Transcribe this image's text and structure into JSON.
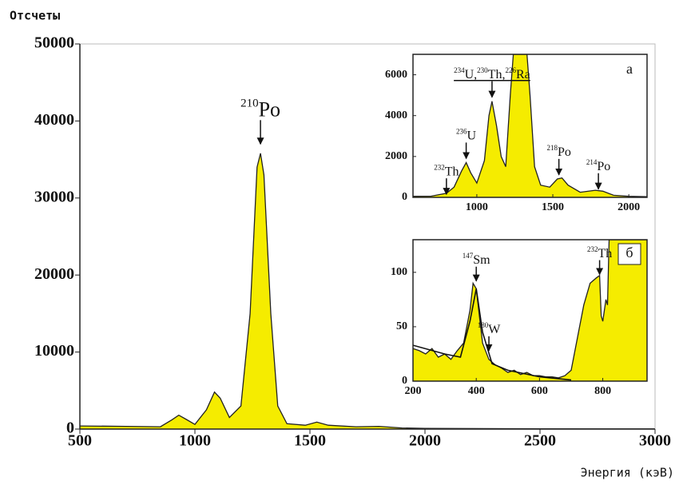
{
  "chart_data": [
    {
      "type": "area",
      "y_label": "Отсчеты",
      "x_label": "Энергия (кэВ)",
      "xlim": [
        500,
        3000
      ],
      "ylim": [
        0,
        50000
      ],
      "xticks": [
        500,
        1000,
        1500,
        2000,
        2500,
        3000
      ],
      "yticks": [
        0,
        10000,
        20000,
        30000,
        40000,
        50000
      ],
      "grid": false,
      "series": [
        {
          "color": "#f5ec00",
          "x": [
            500,
            700,
            850,
            900,
            930,
            960,
            1000,
            1050,
            1085,
            1110,
            1150,
            1200,
            1240,
            1270,
            1285,
            1300,
            1330,
            1360,
            1400,
            1480,
            1530,
            1580,
            1700,
            1800,
            1900,
            2000,
            2500,
            3000
          ],
          "values": [
            400,
            350,
            300,
            1200,
            1800,
            1300,
            600,
            2500,
            4800,
            4000,
            1500,
            3000,
            15000,
            34000,
            35800,
            33000,
            15000,
            3000,
            700,
            500,
            900,
            500,
            300,
            350,
            150,
            80,
            40,
            20
          ]
        }
      ],
      "annotations": [
        {
          "label": [
            {
              "sup": "210",
              "text": "Po"
            }
          ],
          "x": 1285,
          "y": 37000
        }
      ]
    },
    {
      "type": "area",
      "panel_label": "а",
      "xlim": [
        580,
        2120
      ],
      "ylim": [
        0,
        7000
      ],
      "xticks": [
        1000,
        1500,
        2000
      ],
      "yticks": [
        0,
        2000,
        4000,
        6000
      ],
      "series": [
        {
          "color": "#f5ec00",
          "x": [
            580,
            700,
            800,
            850,
            900,
            930,
            960,
            1000,
            1050,
            1080,
            1100,
            1130,
            1160,
            1190,
            1220,
            1240,
            1330,
            1350,
            1380,
            1420,
            1480,
            1530,
            1560,
            1600,
            1680,
            1780,
            1830,
            1900,
            2000,
            2120
          ],
          "values": [
            50,
            60,
            200,
            500,
            1300,
            1700,
            1200,
            700,
            1800,
            4000,
            4700,
            3500,
            2000,
            1500,
            5000,
            7000,
            7000,
            5000,
            1500,
            600,
            500,
            900,
            950,
            600,
            250,
            350,
            300,
            100,
            50,
            30
          ]
        }
      ],
      "annotations": [
        {
          "label": [
            {
              "sup": "234",
              "text": "U,"
            },
            {
              "sup": "230",
              "text": "Th,"
            },
            {
              "sup": "226",
              "text": "Ra"
            }
          ],
          "x": 1100,
          "y": 4900
        },
        {
          "label": [
            {
              "sup": "236",
              "text": "U"
            }
          ],
          "x": 930,
          "y": 1900
        },
        {
          "label": [
            {
              "sup": "232",
              "text": "Th"
            }
          ],
          "x": 800,
          "y": 150
        },
        {
          "label": [
            {
              "sup": "218",
              "text": "Po"
            }
          ],
          "x": 1540,
          "y": 1100
        },
        {
          "label": [
            {
              "sup": "214",
              "text": "Po"
            }
          ],
          "x": 1800,
          "y": 400
        }
      ]
    },
    {
      "type": "area",
      "panel_label": "б",
      "xlim": [
        200,
        940
      ],
      "ylim": [
        0,
        130
      ],
      "xticks": [
        200,
        400,
        600,
        800
      ],
      "yticks": [
        0,
        50,
        100
      ],
      "series": [
        {
          "color": "#f5ec00",
          "x": [
            200,
            220,
            240,
            260,
            280,
            300,
            320,
            340,
            360,
            380,
            390,
            400,
            410,
            420,
            440,
            460,
            480,
            500,
            520,
            540,
            560,
            580,
            600,
            620,
            640,
            660,
            680,
            700,
            720,
            740,
            760,
            780,
            790,
            795,
            800,
            810,
            815,
            820,
            940
          ],
          "values": [
            30,
            28,
            25,
            30,
            22,
            25,
            20,
            28,
            35,
            65,
            90,
            85,
            60,
            35,
            20,
            15,
            12,
            8,
            10,
            6,
            8,
            5,
            5,
            4,
            4,
            3,
            5,
            10,
            40,
            70,
            90,
            95,
            97,
            60,
            55,
            75,
            70,
            130,
            130
          ]
        },
        {
          "color": "#111111",
          "fill": false,
          "x": [
            200,
            300,
            350,
            380,
            400,
            420,
            450,
            500,
            600,
            700
          ],
          "values": [
            33,
            25,
            22,
            55,
            85,
            45,
            16,
            10,
            4,
            1
          ]
        }
      ],
      "annotations": [
        {
          "label": [
            {
              "sup": "147",
              "text": "Sm"
            }
          ],
          "x": 400,
          "y": 92
        },
        {
          "label": [
            {
              "sup": "180",
              "text": "W"
            }
          ],
          "x": 440,
          "y": 28
        },
        {
          "label": [
            {
              "sup": "232",
              "text": "Th"
            }
          ],
          "x": 790,
          "y": 98
        }
      ]
    }
  ]
}
